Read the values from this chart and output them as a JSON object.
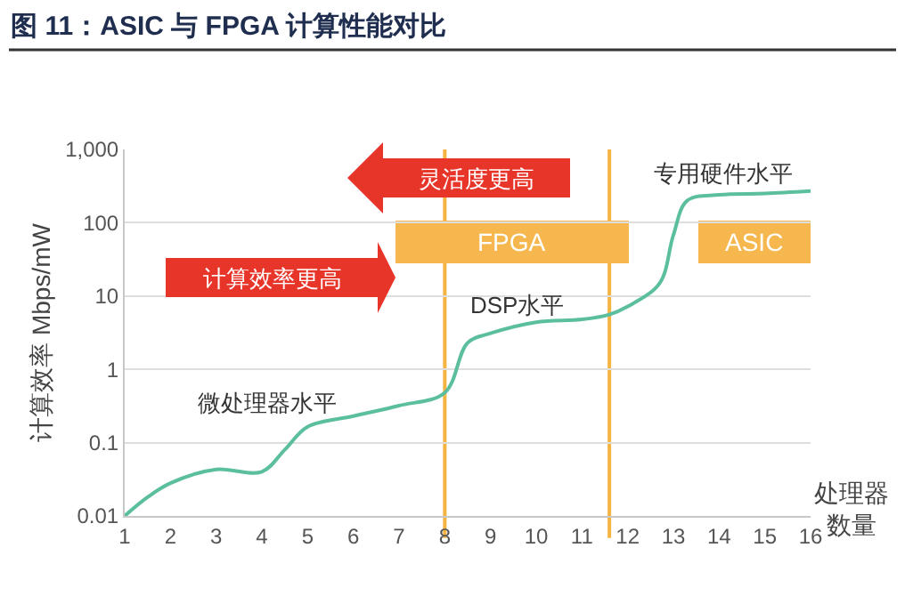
{
  "chart_data": {
    "type": "line",
    "title": "图 11：ASIC 与 FPGA 计算性能对比",
    "xlabel": "处理器数量",
    "ylabel": "计算效率 Mbps/mW",
    "x": [
      1,
      1.5,
      2,
      3,
      4,
      4.5,
      5,
      6,
      7,
      8,
      8.5,
      9,
      10,
      11,
      11.6,
      12,
      12.7,
      13,
      13.3,
      14,
      15,
      16
    ],
    "series": [
      {
        "color": "#5bbf9f",
        "values": [
          0.01,
          0.018,
          0.028,
          0.043,
          0.04,
          0.08,
          0.165,
          0.23,
          0.32,
          0.48,
          2.3,
          3.1,
          4.4,
          4.8,
          5.6,
          7.2,
          15,
          68,
          200,
          240,
          250,
          270
        ]
      }
    ],
    "log": "y",
    "xlim": [
      1,
      16
    ],
    "xticks": [
      1,
      2,
      3,
      4,
      5,
      6,
      7,
      8,
      9,
      10,
      11,
      12,
      13,
      14,
      15,
      16
    ],
    "ylim": [
      0.01,
      1000
    ],
    "yticks": [
      0.01,
      0.1,
      1,
      10,
      100,
      {
        "value": 1000,
        "label": "1,000"
      }
    ],
    "grid": "y",
    "ref_lines": [
      {
        "axis": "x",
        "value": 8,
        "color": "#f5b342"
      },
      {
        "axis": "x",
        "value": 11.6,
        "color": "#f5b342"
      }
    ],
    "annotations": [
      "灵活度更高",
      "计算效率更高",
      "FPGA",
      "ASIC",
      "专用硬件水平",
      "DSP水平",
      "微处理器水平"
    ]
  }
}
